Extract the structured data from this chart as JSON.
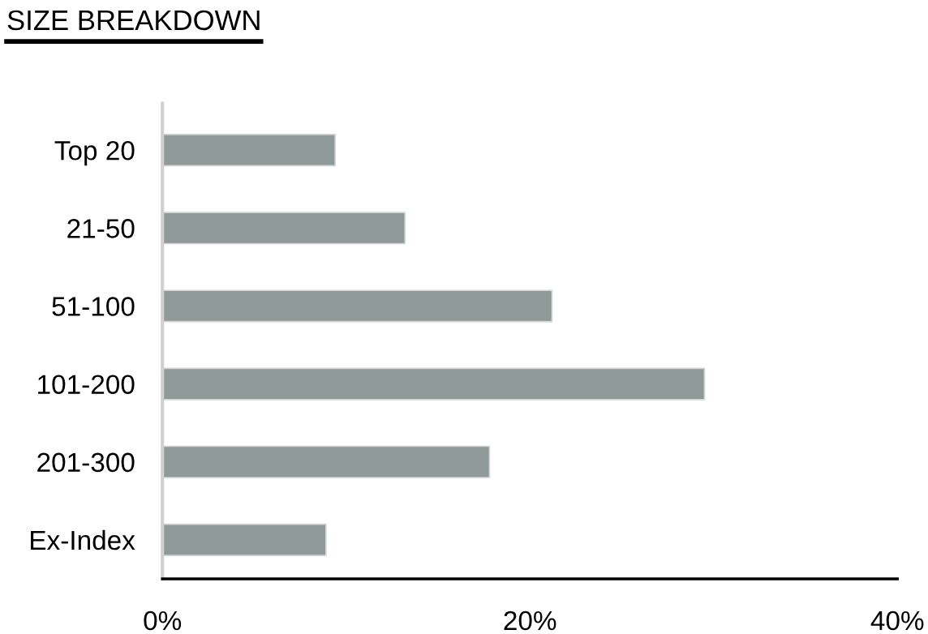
{
  "chart_data": {
    "type": "bar",
    "orientation": "horizontal",
    "title": "SIZE BREAKDOWN",
    "categories": [
      "Top 20",
      "21-50",
      "51-100",
      "101-200",
      "201-300",
      "Ex-Index"
    ],
    "values": [
      9.4,
      13.2,
      21.2,
      29.5,
      17.8,
      8.9
    ],
    "color": "#8f9a98",
    "xlim": [
      0,
      40
    ],
    "xticks": [
      {
        "value": 0,
        "label": "0%"
      },
      {
        "value": 20,
        "label": "20%"
      },
      {
        "value": 40,
        "label": "40%"
      }
    ],
    "grid": false,
    "legend": false
  }
}
